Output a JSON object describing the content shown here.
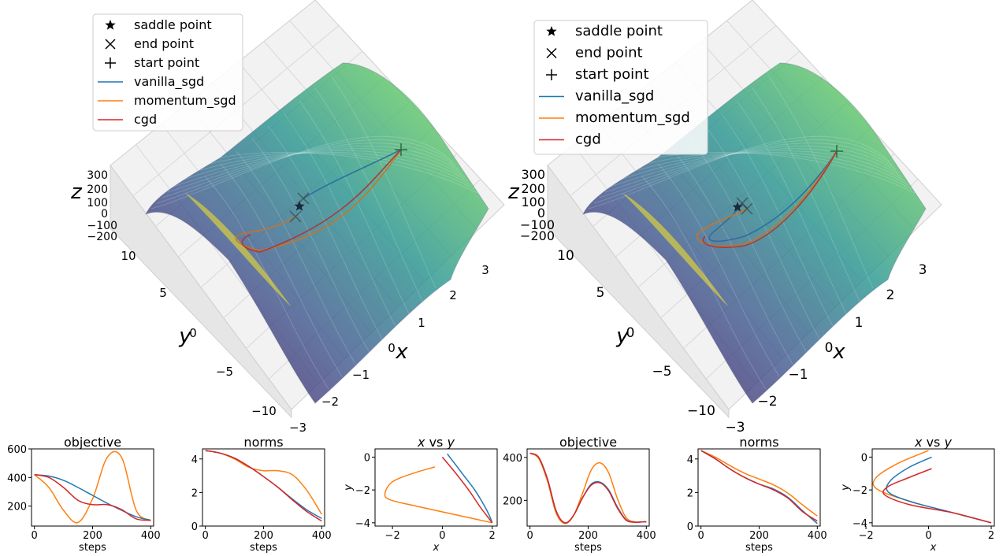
{
  "colors": {
    "vanilla_sgd": "#1f77b4",
    "momentum_sgd": "#ff7f0e",
    "cgd": "#d62728",
    "surface_low": "#440154",
    "surface_mid": "#21918c",
    "surface_high": "#fde725"
  },
  "panels_3d": [
    {
      "legend": [
        "saddle point",
        "end point",
        "start point",
        "vanilla_sgd",
        "momentum_sgd",
        "cgd"
      ],
      "legend_markers": [
        "star-icon",
        "x-mark-icon",
        "plus-mark-icon",
        "line",
        "line",
        "line"
      ],
      "xlabel": "x",
      "ylabel": "y",
      "zlabel": "z",
      "x_ticks": [
        "3",
        "2",
        "1",
        "0",
        "−1",
        "−2",
        "−3"
      ],
      "y_ticks": [
        "10",
        "5",
        "0",
        "−5",
        "−10"
      ],
      "z_ticks": [
        "300",
        "200",
        "100",
        "0",
        "−100",
        "−200"
      ]
    },
    {
      "legend": [
        "saddle point",
        "end point",
        "start point",
        "vanilla_sgd",
        "momentum_sgd",
        "cgd"
      ],
      "legend_markers": [
        "star-icon",
        "x-mark-icon",
        "plus-mark-icon",
        "line",
        "line",
        "line"
      ],
      "xlabel": "x",
      "ylabel": "y",
      "zlabel": "z",
      "x_ticks": [
        "3",
        "2",
        "1",
        "0",
        "−1",
        "−2",
        "−3"
      ],
      "y_ticks": [
        "10",
        "5",
        "0",
        "−5",
        "−10"
      ],
      "z_ticks": [
        "300",
        "200",
        "100",
        "0",
        "−100",
        "−200"
      ]
    }
  ],
  "chart_data": [
    {
      "type": "line",
      "title": "objective",
      "xlabel": "steps",
      "ylabel": "",
      "xlim": [
        -10,
        410
      ],
      "ylim": [
        60,
        600
      ],
      "x_ticks": [
        0,
        200,
        400
      ],
      "y_ticks": [
        200,
        400,
        600
      ],
      "x": [
        0,
        50,
        100,
        150,
        200,
        250,
        300,
        350,
        400
      ],
      "series": [
        {
          "name": "vanilla_sgd",
          "values": [
            420,
            410,
            380,
            330,
            275,
            220,
            170,
            125,
            100
          ]
        },
        {
          "name": "momentum_sgd",
          "values": [
            420,
            330,
            170,
            85,
            250,
            540,
            540,
            170,
            100
          ]
        },
        {
          "name": "cgd",
          "values": [
            420,
            400,
            330,
            240,
            210,
            210,
            175,
            110,
            100
          ]
        }
      ]
    },
    {
      "type": "line",
      "title": "norms",
      "xlabel": "steps",
      "ylabel": "",
      "xlim": [
        -10,
        410
      ],
      "ylim": [
        0,
        4.6
      ],
      "x_ticks": [
        0,
        200,
        400
      ],
      "y_ticks": [
        0,
        2,
        4
      ],
      "x": [
        0,
        50,
        100,
        150,
        200,
        250,
        300,
        350,
        400
      ],
      "series": [
        {
          "name": "vanilla_sgd",
          "values": [
            4.5,
            4.35,
            4.05,
            3.55,
            2.95,
            2.3,
            1.6,
            0.95,
            0.45
          ]
        },
        {
          "name": "momentum_sgd",
          "values": [
            4.5,
            4.35,
            4.0,
            3.5,
            3.3,
            3.3,
            3.05,
            2.1,
            0.7
          ]
        },
        {
          "name": "cgd",
          "values": [
            4.5,
            4.35,
            4.05,
            3.55,
            2.95,
            2.3,
            1.55,
            0.85,
            0.3
          ]
        }
      ]
    },
    {
      "type": "line",
      "title": "x vs y",
      "xlabel": "x",
      "ylabel": "y",
      "xlim": [
        -2.7,
        2.2
      ],
      "ylim": [
        -4.2,
        0.5
      ],
      "x_ticks": [
        -2,
        0,
        2
      ],
      "y_ticks": [
        -4,
        -2,
        0
      ],
      "series": [
        {
          "name": "vanilla_sgd",
          "x": [
            0.2,
            0.8,
            1.3,
            1.7,
            1.9,
            2.0
          ],
          "y": [
            0.2,
            -1.0,
            -2.0,
            -3.0,
            -3.6,
            -4.0
          ]
        },
        {
          "name": "momentum_sgd",
          "x": [
            -0.3,
            -1.2,
            -2.0,
            -2.3,
            -2.1,
            -1.0,
            0.5,
            2.0
          ],
          "y": [
            -0.6,
            -1.0,
            -1.5,
            -2.2,
            -2.6,
            -3.0,
            -3.5,
            -4.0
          ]
        },
        {
          "name": "cgd",
          "x": [
            0.0,
            0.6,
            1.1,
            1.5,
            1.8,
            2.0
          ],
          "y": [
            0.0,
            -1.1,
            -2.1,
            -3.0,
            -3.6,
            -4.0
          ]
        }
      ]
    },
    {
      "type": "line",
      "title": "objective",
      "xlabel": "steps",
      "ylabel": "",
      "xlim": [
        -10,
        410
      ],
      "ylim": [
        80,
        440
      ],
      "x_ticks": [
        0,
        200,
        400
      ],
      "y_ticks": [
        200,
        400
      ],
      "x": [
        0,
        30,
        60,
        90,
        120,
        150,
        180,
        210,
        240,
        270,
        300,
        330,
        360,
        390,
        400
      ],
      "series": [
        {
          "name": "vanilla_sgd",
          "values": [
            420,
            400,
            300,
            150,
            95,
            130,
            210,
            275,
            285,
            250,
            170,
            110,
            98,
            100,
            100
          ]
        },
        {
          "name": "momentum_sgd",
          "values": [
            420,
            395,
            290,
            140,
            92,
            130,
            230,
            340,
            375,
            330,
            210,
            120,
            100,
            100,
            100
          ]
        },
        {
          "name": "cgd",
          "values": [
            420,
            400,
            300,
            150,
            95,
            130,
            210,
            270,
            282,
            245,
            165,
            108,
            98,
            100,
            100
          ]
        }
      ]
    },
    {
      "type": "line",
      "title": "norms",
      "xlabel": "steps",
      "ylabel": "",
      "xlim": [
        -10,
        410
      ],
      "ylim": [
        0,
        4.6
      ],
      "x_ticks": [
        0,
        200,
        400
      ],
      "y_ticks": [
        0,
        2,
        4
      ],
      "x": [
        0,
        50,
        100,
        150,
        200,
        250,
        300,
        350,
        400
      ],
      "series": [
        {
          "name": "vanilla_sgd",
          "values": [
            4.5,
            4.0,
            3.4,
            2.9,
            2.5,
            2.2,
            1.7,
            0.9,
            0.15
          ]
        },
        {
          "name": "momentum_sgd",
          "values": [
            4.5,
            4.1,
            3.6,
            3.15,
            2.8,
            2.45,
            1.95,
            1.25,
            0.6
          ]
        },
        {
          "name": "cgd",
          "values": [
            4.5,
            4.0,
            3.4,
            2.9,
            2.5,
            2.15,
            1.65,
            0.85,
            0.3
          ]
        }
      ]
    },
    {
      "type": "line",
      "title": "x vs y",
      "xlabel": "x",
      "ylabel": "y",
      "xlim": [
        -1.8,
        2.1
      ],
      "ylim": [
        -4.2,
        0.5
      ],
      "x_ticks": [
        -2,
        0,
        2
      ],
      "y_ticks": [
        -4,
        -2,
        0
      ],
      "series": [
        {
          "name": "vanilla_sgd",
          "x": [
            0.1,
            -0.6,
            -1.2,
            -1.3,
            -0.6,
            0.6,
            2.0
          ],
          "y": [
            0.0,
            -0.6,
            -1.4,
            -2.1,
            -2.7,
            -3.3,
            -4.0
          ]
        },
        {
          "name": "momentum_sgd",
          "x": [
            0.0,
            -1.0,
            -1.7,
            -1.6,
            -0.4,
            1.0,
            2.0
          ],
          "y": [
            0.4,
            -0.4,
            -1.3,
            -2.0,
            -2.8,
            -3.5,
            -4.0
          ]
        },
        {
          "name": "cgd",
          "x": [
            0.1,
            -0.7,
            -1.3,
            -1.4,
            -0.6,
            0.8,
            2.0
          ],
          "y": [
            -0.7,
            -1.3,
            -1.8,
            -2.3,
            -2.9,
            -3.4,
            -4.0
          ]
        }
      ]
    }
  ]
}
